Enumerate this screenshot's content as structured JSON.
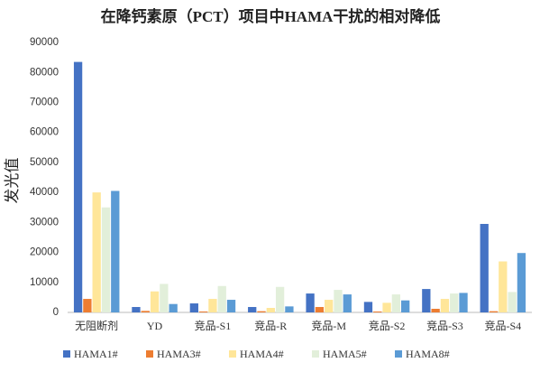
{
  "chart_data": {
    "type": "bar",
    "title": "在降钙素原（PCT）项目中HAMA干扰的相对降低",
    "y_label": "发光值",
    "categories": [
      "无阻断剂",
      "YD",
      "竞品-S1",
      "竞品-R",
      "竞品-M",
      "竞品-S2",
      "竞品-S3",
      "竞品-S4"
    ],
    "series": [
      {
        "name": "HAMA1#",
        "color": "#4472c4",
        "values": [
          83500,
          1800,
          3000,
          1800,
          6300,
          3500,
          7800,
          29500
        ]
      },
      {
        "name": "HAMA3#",
        "color": "#ed7d31",
        "values": [
          4500,
          500,
          300,
          400,
          1800,
          300,
          1200,
          400
        ]
      },
      {
        "name": "HAMA4#",
        "color": "#ffe699",
        "values": [
          40000,
          7000,
          4500,
          1500,
          4200,
          3200,
          4500,
          17000
        ]
      },
      {
        "name": "HAMA5#",
        "color": "#e2efda",
        "values": [
          35000,
          9500,
          8800,
          8500,
          7500,
          6000,
          6300,
          6800
        ]
      },
      {
        "name": "HAMA8#",
        "color": "#5b9bd5",
        "values": [
          40500,
          2800,
          4200,
          2000,
          6000,
          4000,
          6500,
          19800
        ]
      }
    ],
    "ylim": [
      0,
      90000
    ],
    "yticks": [
      0,
      10000,
      20000,
      30000,
      40000,
      50000,
      60000,
      70000,
      80000,
      90000
    ],
    "legend": "bottom"
  }
}
